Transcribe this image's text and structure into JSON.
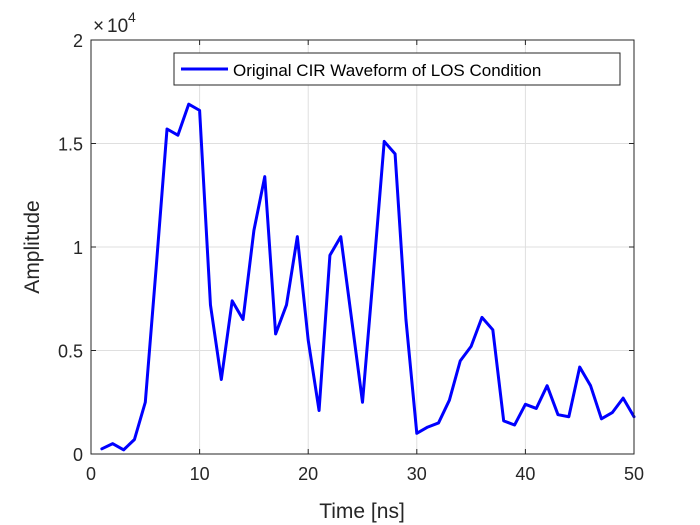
{
  "chart_data": {
    "type": "line",
    "xlabel": "Time [ns]",
    "ylabel": "Amplitude",
    "xlim": [
      0,
      50
    ],
    "ylim": [
      0,
      20000
    ],
    "xticks": [
      0,
      10,
      20,
      30,
      40,
      50
    ],
    "xtick_labels": [
      "0",
      "10",
      "20",
      "30",
      "40",
      "50"
    ],
    "yticks": [
      0,
      5000,
      10000,
      15000,
      20000
    ],
    "ytick_labels": [
      "0",
      "0.5",
      "1",
      "1.5",
      "2"
    ],
    "y_exponent": {
      "base": "10",
      "power": "4"
    },
    "grid": true,
    "legend_position": "top-right",
    "series": [
      {
        "name": "Original CIR Waveform of LOS Condition",
        "color": "#0000ff",
        "x": [
          1,
          2,
          3,
          4,
          5,
          6,
          7,
          8,
          9,
          10,
          11,
          12,
          13,
          14,
          15,
          16,
          17,
          18,
          19,
          20,
          21,
          22,
          23,
          24,
          25,
          26,
          27,
          28,
          29,
          30,
          31,
          32,
          33,
          34,
          35,
          36,
          37,
          38,
          39,
          40,
          41,
          42,
          43,
          44,
          45,
          46,
          47,
          48,
          49,
          50
        ],
        "y": [
          250,
          500,
          200,
          700,
          2500,
          9000,
          15700,
          15400,
          16900,
          16600,
          7200,
          3600,
          7400,
          6500,
          10800,
          13400,
          5800,
          7200,
          10500,
          5500,
          2100,
          9600,
          10500,
          6500,
          2500,
          8700,
          15100,
          14500,
          6500,
          1000,
          1300,
          1500,
          2600,
          4500,
          5200,
          6600,
          6000,
          1600,
          1400,
          2400,
          2200,
          3300,
          1900,
          1800,
          4200,
          3300,
          1700,
          2000,
          2700,
          1800
        ]
      }
    ]
  }
}
